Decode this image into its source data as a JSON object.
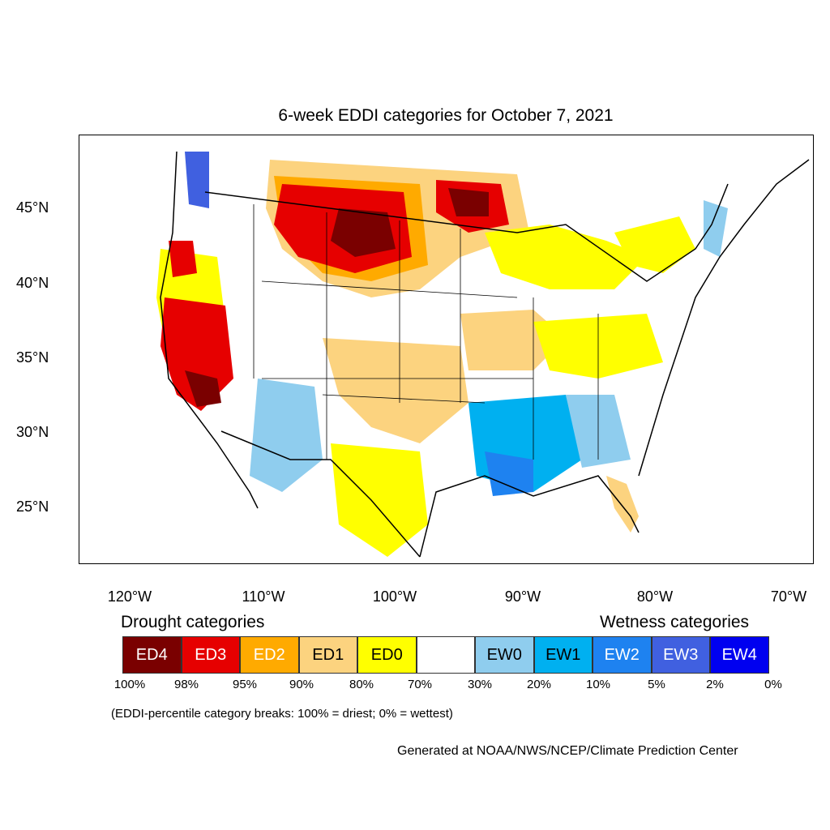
{
  "title": "6-week EDDI categories for October 7, 2021",
  "y_ticks": [
    "45°N",
    "40°N",
    "35°N",
    "30°N",
    "25°N"
  ],
  "x_ticks": [
    "120°W",
    "110°W",
    "100°W",
    "90°W",
    "80°W",
    "70°W"
  ],
  "legend": {
    "drought_heading": "Drought categories",
    "wetness_heading": "Wetness categories",
    "categories": [
      {
        "label": "ED4",
        "color": "#7a0000",
        "text_color": "#ffffff"
      },
      {
        "label": "ED3",
        "color": "#e60000",
        "text_color": "#ffffff"
      },
      {
        "label": "ED2",
        "color": "#ffaa00",
        "text_color": "#ffffff"
      },
      {
        "label": "ED1",
        "color": "#fcd37f",
        "text_color": "#000000"
      },
      {
        "label": "ED0",
        "color": "#ffff00",
        "text_color": "#000000"
      },
      {
        "label": "",
        "color": "#ffffff",
        "text_color": "#000000"
      },
      {
        "label": "EW0",
        "color": "#8fcdee",
        "text_color": "#000000"
      },
      {
        "label": "EW1",
        "color": "#00b0f0",
        "text_color": "#000000"
      },
      {
        "label": "EW2",
        "color": "#1e82f0",
        "text_color": "#ffffff"
      },
      {
        "label": "EW3",
        "color": "#4060e0",
        "text_color": "#ffffff"
      },
      {
        "label": "EW4",
        "color": "#0000f0",
        "text_color": "#ffffff"
      }
    ],
    "breaks": [
      "100%",
      "98%",
      "95%",
      "90%",
      "80%",
      "70%",
      "30%",
      "20%",
      "10%",
      "5%",
      "2%",
      "0%"
    ]
  },
  "note": "(EDDI-percentile category breaks: 100% = driest; 0% = wettest)",
  "credit": "Generated at NOAA/NWS/NCEP/Climate Prediction Center"
}
